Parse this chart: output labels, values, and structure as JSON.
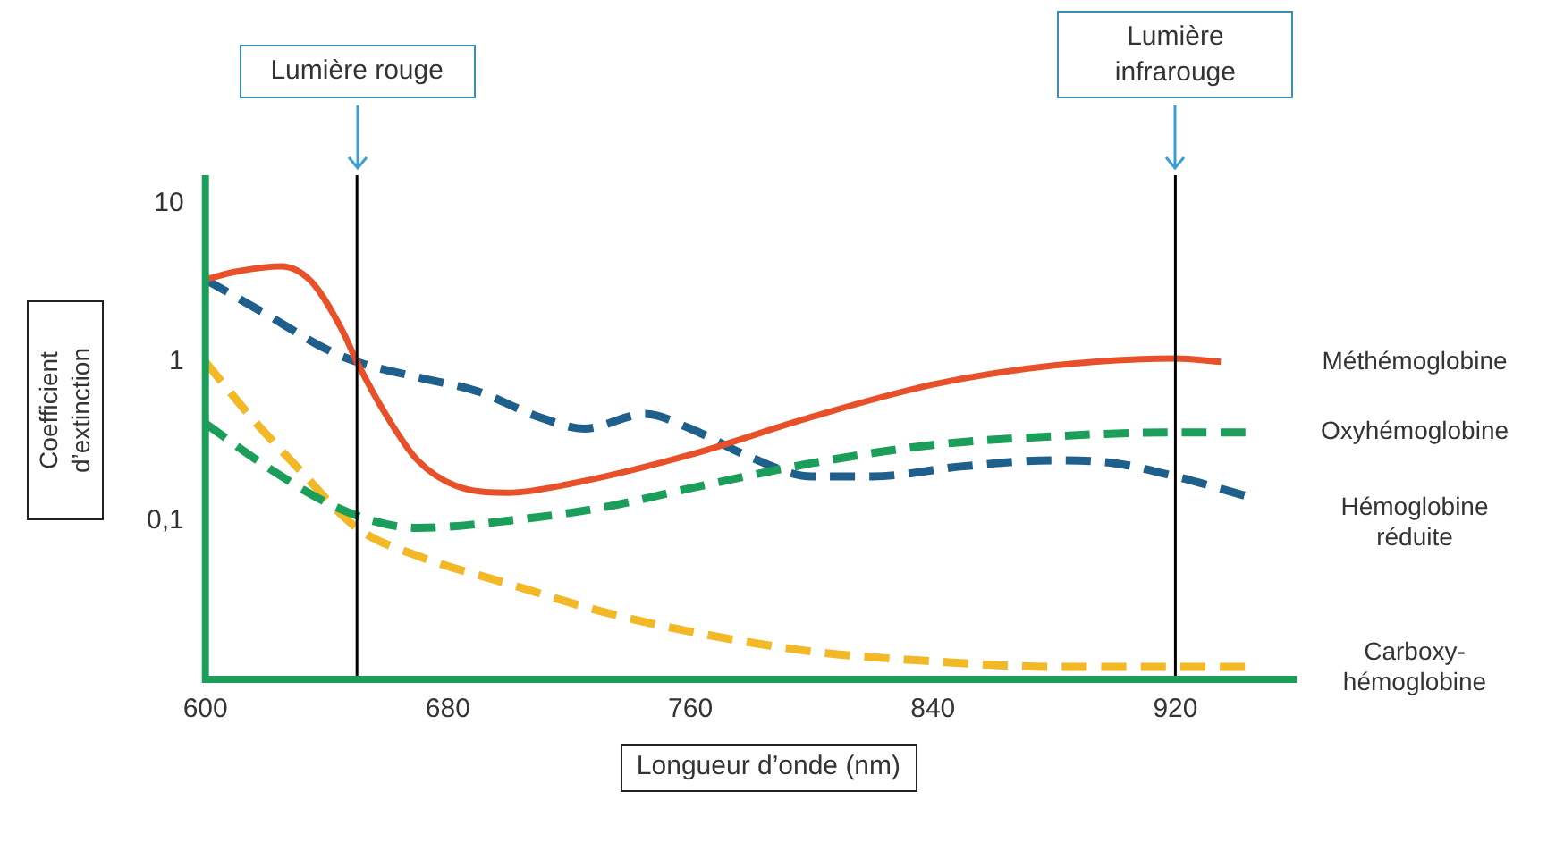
{
  "chart_data": {
    "type": "line",
    "xlabel": "Longueur d’onde (nm)",
    "ylabel": "Coefficient d’extinction",
    "xlim": [
      600,
      960
    ],
    "xticks": [
      600,
      680,
      760,
      840,
      920
    ],
    "ylim": [
      0.01,
      15
    ],
    "yticks": [
      10,
      1,
      {
        "value": 0.1,
        "label": "0,1"
      }
    ],
    "log": "y",
    "grid": false,
    "legend": false,
    "marker": "none",
    "ref_lines": [
      {
        "axis": "x",
        "value": 650,
        "label": "Lumière rouge",
        "color": "#000000"
      },
      {
        "axis": "x",
        "value": 920,
        "label": "Lumière infrarouge",
        "color": "#000000"
      }
    ],
    "series": [
      {
        "name": "Méthémoglobine",
        "color": "#e8502a",
        "line_style": "solid",
        "x": [
          600,
          610,
          625,
          635,
          645,
          650,
          660,
          670,
          685,
          700,
          720,
          760,
          800,
          840,
          880,
          920,
          935
        ],
        "values": [
          3.3,
          3.7,
          4.0,
          3.2,
          1.6,
          1.0,
          0.45,
          0.24,
          0.16,
          0.15,
          0.17,
          0.26,
          0.45,
          0.72,
          0.95,
          1.05,
          1.0
        ]
      },
      {
        "name": "Oxyhémoglobine",
        "color": "#1a9e5a",
        "line_style": "dashed",
        "x": [
          600,
          620,
          640,
          655,
          670,
          700,
          730,
          760,
          800,
          840,
          880,
          920,
          945
        ],
        "values": [
          0.41,
          0.22,
          0.13,
          0.1,
          0.09,
          0.1,
          0.12,
          0.16,
          0.23,
          0.3,
          0.34,
          0.36,
          0.36
        ]
      },
      {
        "name": "Hémoglobine réduite",
        "color": "#1f5f8b",
        "line_style": "dashed",
        "x": [
          600,
          620,
          640,
          650,
          670,
          690,
          710,
          725,
          745,
          760,
          780,
          800,
          820,
          850,
          880,
          900,
          920,
          945
        ],
        "values": [
          3.3,
          2.0,
          1.2,
          1.0,
          0.8,
          0.65,
          0.45,
          0.38,
          0.47,
          0.38,
          0.25,
          0.19,
          0.19,
          0.22,
          0.24,
          0.23,
          0.19,
          0.14
        ]
      },
      {
        "name": "Carboxy-hémoglobine",
        "color": "#f2b825",
        "line_style": "dashed",
        "x": [
          600,
          615,
          630,
          650,
          670,
          700,
          730,
          760,
          800,
          840,
          880,
          920,
          945
        ],
        "values": [
          1.0,
          0.45,
          0.22,
          0.09,
          0.06,
          0.04,
          0.027,
          0.02,
          0.015,
          0.013,
          0.012,
          0.012,
          0.012
        ]
      }
    ]
  }
}
